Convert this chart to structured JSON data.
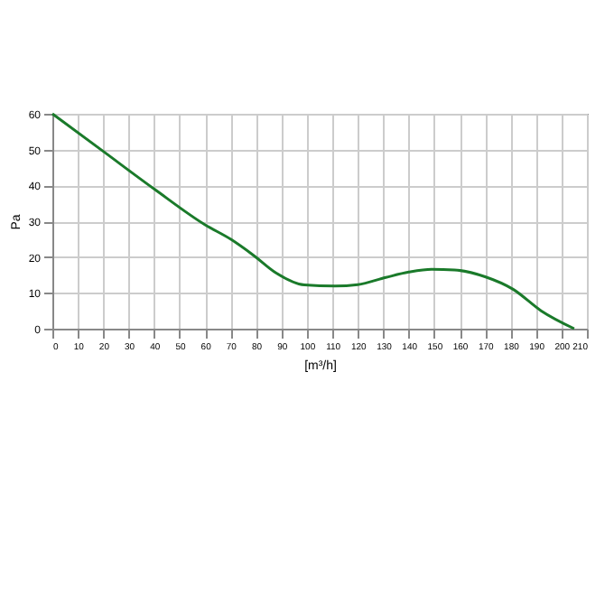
{
  "chart_data": {
    "type": "line",
    "xlabel": "[m³/h]",
    "ylabel": "Pa",
    "x": [
      0,
      20,
      40,
      60,
      70,
      79,
      88,
      99,
      111,
      120,
      131,
      140,
      149,
      158,
      170,
      181,
      192,
      205
    ],
    "series": [
      {
        "color": "#1a7a2a",
        "values": [
          60,
          49.5,
          39,
          29,
          25,
          20.5,
          15.5,
          12.2,
          11.9,
          12.3,
          14.3,
          15.8,
          16.6,
          16.4,
          14.5,
          11,
          5,
          0
        ]
      }
    ],
    "xlim": [
      0,
      210
    ],
    "xticks": [
      0,
      10,
      20,
      30,
      40,
      50,
      60,
      70,
      80,
      90,
      100,
      110,
      120,
      130,
      140,
      150,
      160,
      170,
      180,
      190,
      200,
      210
    ],
    "ylim": [
      0,
      60
    ],
    "yticks": [
      0,
      10,
      20,
      30,
      40,
      50,
      60
    ],
    "grid": true,
    "legend": false,
    "marker": "none",
    "line_style": "solid"
  }
}
